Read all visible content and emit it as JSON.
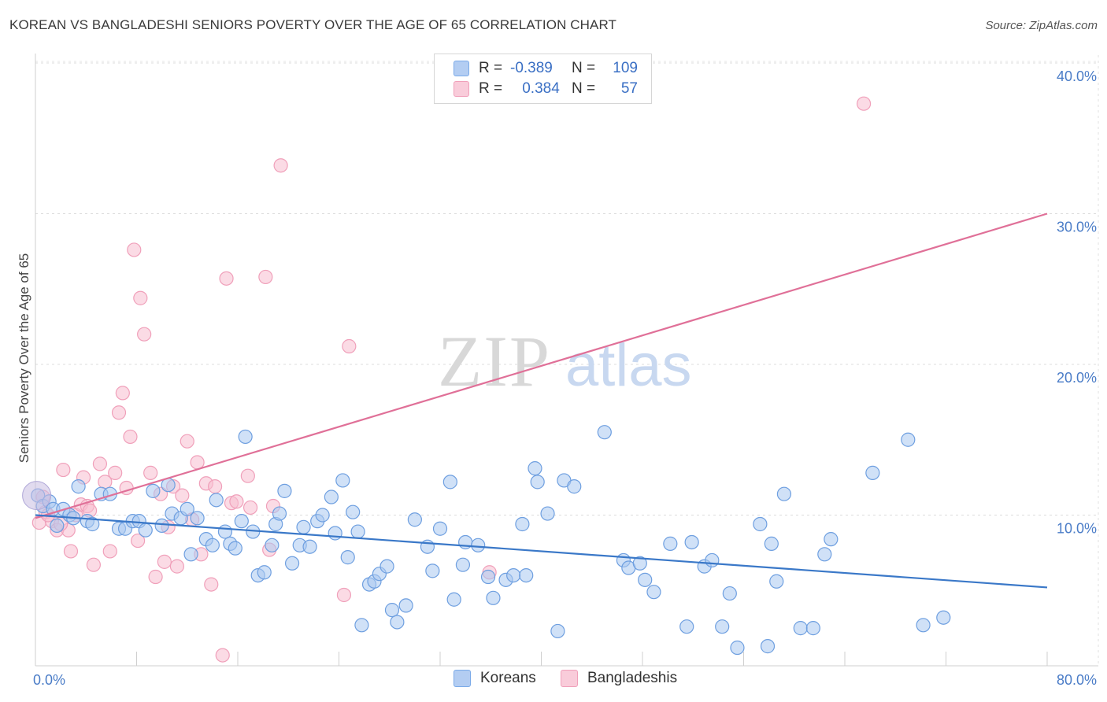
{
  "title": "KOREAN VS BANGLADESHI SENIORS POVERTY OVER THE AGE OF 65 CORRELATION CHART",
  "source": "Source: ZipAtlas.com",
  "watermark": {
    "zip": "ZIP",
    "atlas": "atlas"
  },
  "legend": {
    "rows": [
      {
        "r_label": "R =",
        "r_value": "-0.389",
        "n_label": "N =",
        "n_value": "109"
      },
      {
        "r_label": "R =",
        "r_value": "0.384",
        "n_label": "N =",
        "n_value": "57"
      }
    ]
  },
  "chart_data": {
    "type": "scatter",
    "title": "KOREAN VS BANGLADESHI SENIORS POVERTY OVER THE AGE OF 65 CORRELATION CHART",
    "xlabel": "",
    "ylabel": "Seniors Poverty Over the Age of 65",
    "xlim": [
      0,
      80
    ],
    "ylim": [
      0,
      40
    ],
    "x_tick_labels": [
      "0.0%",
      "80.0%"
    ],
    "y_ticks": [
      10,
      20,
      30,
      40
    ],
    "y_tick_labels": [
      "10.0%",
      "20.0%",
      "30.0%",
      "40.0%"
    ],
    "grid": true,
    "legend_position": "top-center",
    "colors": {
      "Koreans": "#7aaae8",
      "Bangladeshis": "#f0a0ba",
      "korean_line": "#3a78c8",
      "bangladeshi_line": "#e07098"
    },
    "series": [
      {
        "name": "Koreans",
        "trend": {
          "x": [
            0,
            80
          ],
          "y": [
            10.0,
            5.2
          ]
        },
        "points": [
          [
            0.2,
            11.3
          ],
          [
            0.6,
            10.6
          ],
          [
            1.1,
            10.9
          ],
          [
            1.4,
            10.4
          ],
          [
            1.7,
            9.3
          ],
          [
            2.2,
            10.4
          ],
          [
            2.7,
            10.0
          ],
          [
            3.0,
            9.8
          ],
          [
            3.4,
            11.9
          ],
          [
            4.1,
            9.6
          ],
          [
            4.5,
            9.4
          ],
          [
            5.2,
            11.4
          ],
          [
            5.9,
            11.4
          ],
          [
            6.6,
            9.1
          ],
          [
            7.1,
            9.1
          ],
          [
            7.7,
            9.6
          ],
          [
            8.2,
            9.6
          ],
          [
            8.7,
            9.0
          ],
          [
            9.3,
            11.6
          ],
          [
            10.0,
            9.3
          ],
          [
            10.5,
            12.0
          ],
          [
            10.8,
            10.1
          ],
          [
            11.5,
            9.8
          ],
          [
            12.0,
            10.4
          ],
          [
            12.3,
            7.4
          ],
          [
            12.8,
            9.8
          ],
          [
            13.5,
            8.4
          ],
          [
            14.0,
            8.0
          ],
          [
            14.3,
            11.0
          ],
          [
            15.0,
            8.9
          ],
          [
            15.4,
            8.1
          ],
          [
            15.8,
            7.8
          ],
          [
            16.3,
            9.6
          ],
          [
            16.6,
            15.2
          ],
          [
            17.2,
            8.9
          ],
          [
            17.6,
            6.0
          ],
          [
            18.1,
            6.2
          ],
          [
            18.7,
            8.0
          ],
          [
            19.0,
            9.4
          ],
          [
            19.3,
            10.1
          ],
          [
            19.7,
            11.6
          ],
          [
            20.3,
            6.8
          ],
          [
            20.9,
            8.0
          ],
          [
            21.2,
            9.2
          ],
          [
            21.7,
            7.9
          ],
          [
            22.3,
            9.6
          ],
          [
            22.7,
            10.0
          ],
          [
            23.4,
            11.2
          ],
          [
            23.7,
            8.8
          ],
          [
            24.3,
            12.3
          ],
          [
            24.7,
            7.2
          ],
          [
            25.1,
            10.2
          ],
          [
            25.5,
            8.9
          ],
          [
            25.8,
            2.7
          ],
          [
            26.4,
            5.4
          ],
          [
            26.8,
            5.6
          ],
          [
            27.2,
            6.1
          ],
          [
            27.8,
            6.6
          ],
          [
            28.2,
            3.7
          ],
          [
            28.6,
            2.9
          ],
          [
            29.3,
            4.0
          ],
          [
            30.0,
            9.7
          ],
          [
            31.0,
            7.9
          ],
          [
            31.4,
            6.3
          ],
          [
            32.0,
            9.1
          ],
          [
            32.8,
            12.2
          ],
          [
            33.1,
            4.4
          ],
          [
            33.8,
            6.7
          ],
          [
            34.0,
            8.2
          ],
          [
            35.0,
            8.0
          ],
          [
            35.8,
            5.9
          ],
          [
            36.2,
            4.5
          ],
          [
            37.2,
            5.7
          ],
          [
            37.8,
            6.0
          ],
          [
            38.5,
            9.4
          ],
          [
            38.8,
            6.0
          ],
          [
            39.5,
            13.1
          ],
          [
            39.7,
            12.2
          ],
          [
            40.5,
            10.1
          ],
          [
            41.3,
            2.3
          ],
          [
            41.8,
            12.3
          ],
          [
            42.6,
            11.9
          ],
          [
            45.0,
            15.5
          ],
          [
            46.5,
            7.0
          ],
          [
            46.9,
            6.5
          ],
          [
            47.8,
            6.8
          ],
          [
            48.2,
            5.7
          ],
          [
            48.9,
            4.9
          ],
          [
            50.2,
            8.1
          ],
          [
            51.5,
            2.6
          ],
          [
            51.9,
            8.2
          ],
          [
            52.9,
            6.6
          ],
          [
            53.5,
            7.0
          ],
          [
            54.3,
            2.6
          ],
          [
            54.9,
            4.8
          ],
          [
            55.5,
            1.2
          ],
          [
            57.3,
            9.4
          ],
          [
            57.9,
            1.3
          ],
          [
            58.2,
            8.1
          ],
          [
            58.6,
            5.6
          ],
          [
            59.2,
            11.4
          ],
          [
            60.5,
            2.5
          ],
          [
            61.5,
            2.5
          ],
          [
            62.4,
            7.4
          ],
          [
            62.9,
            8.4
          ],
          [
            66.2,
            12.8
          ],
          [
            69.0,
            15.0
          ],
          [
            70.2,
            2.7
          ],
          [
            71.8,
            3.2
          ]
        ]
      },
      {
        "name": "Bangladeshis",
        "trend": {
          "x": [
            0,
            80
          ],
          "y": [
            9.8,
            30.0
          ]
        },
        "points": [
          [
            0.3,
            9.5
          ],
          [
            0.8,
            10.2
          ],
          [
            1.3,
            9.6
          ],
          [
            1.7,
            9.0
          ],
          [
            2.2,
            13.0
          ],
          [
            2.6,
            9.0
          ],
          [
            2.8,
            7.6
          ],
          [
            3.2,
            10.0
          ],
          [
            3.6,
            10.7
          ],
          [
            3.8,
            12.5
          ],
          [
            4.1,
            10.6
          ],
          [
            4.3,
            10.3
          ],
          [
            4.6,
            6.7
          ],
          [
            5.1,
            13.4
          ],
          [
            5.5,
            12.2
          ],
          [
            5.9,
            7.6
          ],
          [
            6.3,
            12.8
          ],
          [
            6.6,
            16.8
          ],
          [
            6.9,
            18.1
          ],
          [
            7.2,
            11.8
          ],
          [
            7.5,
            15.2
          ],
          [
            7.8,
            27.6
          ],
          [
            8.1,
            8.3
          ],
          [
            8.3,
            24.4
          ],
          [
            8.6,
            22.0
          ],
          [
            9.1,
            12.8
          ],
          [
            9.5,
            5.9
          ],
          [
            9.9,
            11.4
          ],
          [
            10.2,
            6.9
          ],
          [
            10.5,
            9.2
          ],
          [
            10.9,
            11.9
          ],
          [
            11.2,
            6.6
          ],
          [
            11.6,
            11.3
          ],
          [
            12.0,
            14.9
          ],
          [
            12.4,
            9.7
          ],
          [
            12.8,
            13.5
          ],
          [
            13.1,
            7.4
          ],
          [
            13.5,
            12.1
          ],
          [
            13.9,
            5.4
          ],
          [
            14.2,
            11.9
          ],
          [
            14.8,
            0.7
          ],
          [
            15.1,
            25.7
          ],
          [
            15.5,
            10.8
          ],
          [
            15.9,
            10.9
          ],
          [
            16.8,
            12.6
          ],
          [
            17.0,
            10.5
          ],
          [
            18.2,
            25.8
          ],
          [
            18.5,
            7.7
          ],
          [
            18.8,
            10.6
          ],
          [
            19.4,
            33.2
          ],
          [
            24.4,
            4.7
          ],
          [
            24.8,
            21.2
          ],
          [
            35.9,
            6.2
          ],
          [
            65.5,
            37.3
          ],
          [
            0.6,
            11.2
          ],
          [
            1.0,
            10.0
          ],
          [
            2.0,
            9.4
          ]
        ]
      }
    ]
  },
  "bottom_legend": [
    {
      "label": "Koreans",
      "color": "#a9c8f0"
    },
    {
      "label": "Bangladeshis",
      "color": "#f7c0d0"
    }
  ]
}
